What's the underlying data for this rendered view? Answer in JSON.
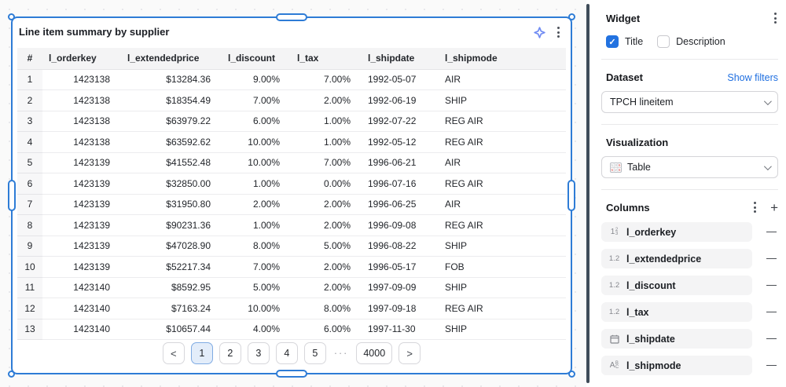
{
  "widget": {
    "title": "Line item summary by supplier",
    "table": {
      "columns": [
        "#",
        "l_orderkey",
        "l_extendedprice",
        "l_discount",
        "l_tax",
        "l_shipdate",
        "l_shipmode"
      ],
      "rows": [
        [
          "1",
          "1423138",
          "$13284.36",
          "9.00%",
          "7.00%",
          "1992-05-07",
          "AIR"
        ],
        [
          "2",
          "1423138",
          "$18354.49",
          "7.00%",
          "2.00%",
          "1992-06-19",
          "SHIP"
        ],
        [
          "3",
          "1423138",
          "$63979.22",
          "6.00%",
          "1.00%",
          "1992-07-22",
          "REG AIR"
        ],
        [
          "4",
          "1423138",
          "$63592.62",
          "10.00%",
          "1.00%",
          "1992-05-12",
          "REG AIR"
        ],
        [
          "5",
          "1423139",
          "$41552.48",
          "10.00%",
          "7.00%",
          "1996-06-21",
          "AIR"
        ],
        [
          "6",
          "1423139",
          "$32850.00",
          "1.00%",
          "0.00%",
          "1996-07-16",
          "REG AIR"
        ],
        [
          "7",
          "1423139",
          "$31950.80",
          "2.00%",
          "2.00%",
          "1996-06-25",
          "AIR"
        ],
        [
          "8",
          "1423139",
          "$90231.36",
          "1.00%",
          "2.00%",
          "1996-09-08",
          "REG AIR"
        ],
        [
          "9",
          "1423139",
          "$47028.90",
          "8.00%",
          "5.00%",
          "1996-08-22",
          "SHIP"
        ],
        [
          "10",
          "1423139",
          "$52217.34",
          "7.00%",
          "2.00%",
          "1996-05-17",
          "FOB"
        ],
        [
          "11",
          "1423140",
          "$8592.95",
          "5.00%",
          "2.00%",
          "1997-09-09",
          "SHIP"
        ],
        [
          "12",
          "1423140",
          "$7163.24",
          "10.00%",
          "8.00%",
          "1997-09-18",
          "REG AIR"
        ],
        [
          "13",
          "1423140",
          "$10657.44",
          "4.00%",
          "6.00%",
          "1997-11-30",
          "SHIP"
        ]
      ]
    },
    "pagination": {
      "items": [
        {
          "label": "<",
          "type": "prev"
        },
        {
          "label": "1",
          "type": "page",
          "active": true
        },
        {
          "label": "2",
          "type": "page"
        },
        {
          "label": "3",
          "type": "page"
        },
        {
          "label": "4",
          "type": "page"
        },
        {
          "label": "5",
          "type": "page"
        },
        {
          "label": "···",
          "type": "ellipsis"
        },
        {
          "label": "4000",
          "type": "page"
        },
        {
          "label": ">",
          "type": "next"
        }
      ]
    }
  },
  "panel": {
    "widget_section": {
      "title": "Widget",
      "title_checkbox_label": "Title",
      "title_checked": true,
      "description_checkbox_label": "Description",
      "description_checked": false,
      "check_glyph": "✓"
    },
    "dataset_section": {
      "label": "Dataset",
      "link": "Show filters",
      "selected": "TPCH lineitem"
    },
    "visualization_section": {
      "label": "Visualization",
      "selected": "Table"
    },
    "columns_section": {
      "label": "Columns",
      "items": [
        {
          "type": "integer",
          "name": "l_orderkey"
        },
        {
          "type": "decimal",
          "name": "l_extendedprice"
        },
        {
          "type": "decimal",
          "name": "l_discount"
        },
        {
          "type": "decimal",
          "name": "l_tax"
        },
        {
          "type": "date",
          "name": "l_shipdate"
        },
        {
          "type": "text",
          "name": "l_shipmode"
        }
      ]
    }
  },
  "colors": {
    "selection_blue": "#2e7cd6",
    "checkbox_blue": "#2272e0",
    "link_blue": "#1f6fe0",
    "active_page_bg": "#e3edfa",
    "divider_dark": "#3f4c59",
    "header_gray": "#f4f4f5",
    "sparkle_gradient": [
      "#6e8df5",
      "#e8559f"
    ]
  }
}
